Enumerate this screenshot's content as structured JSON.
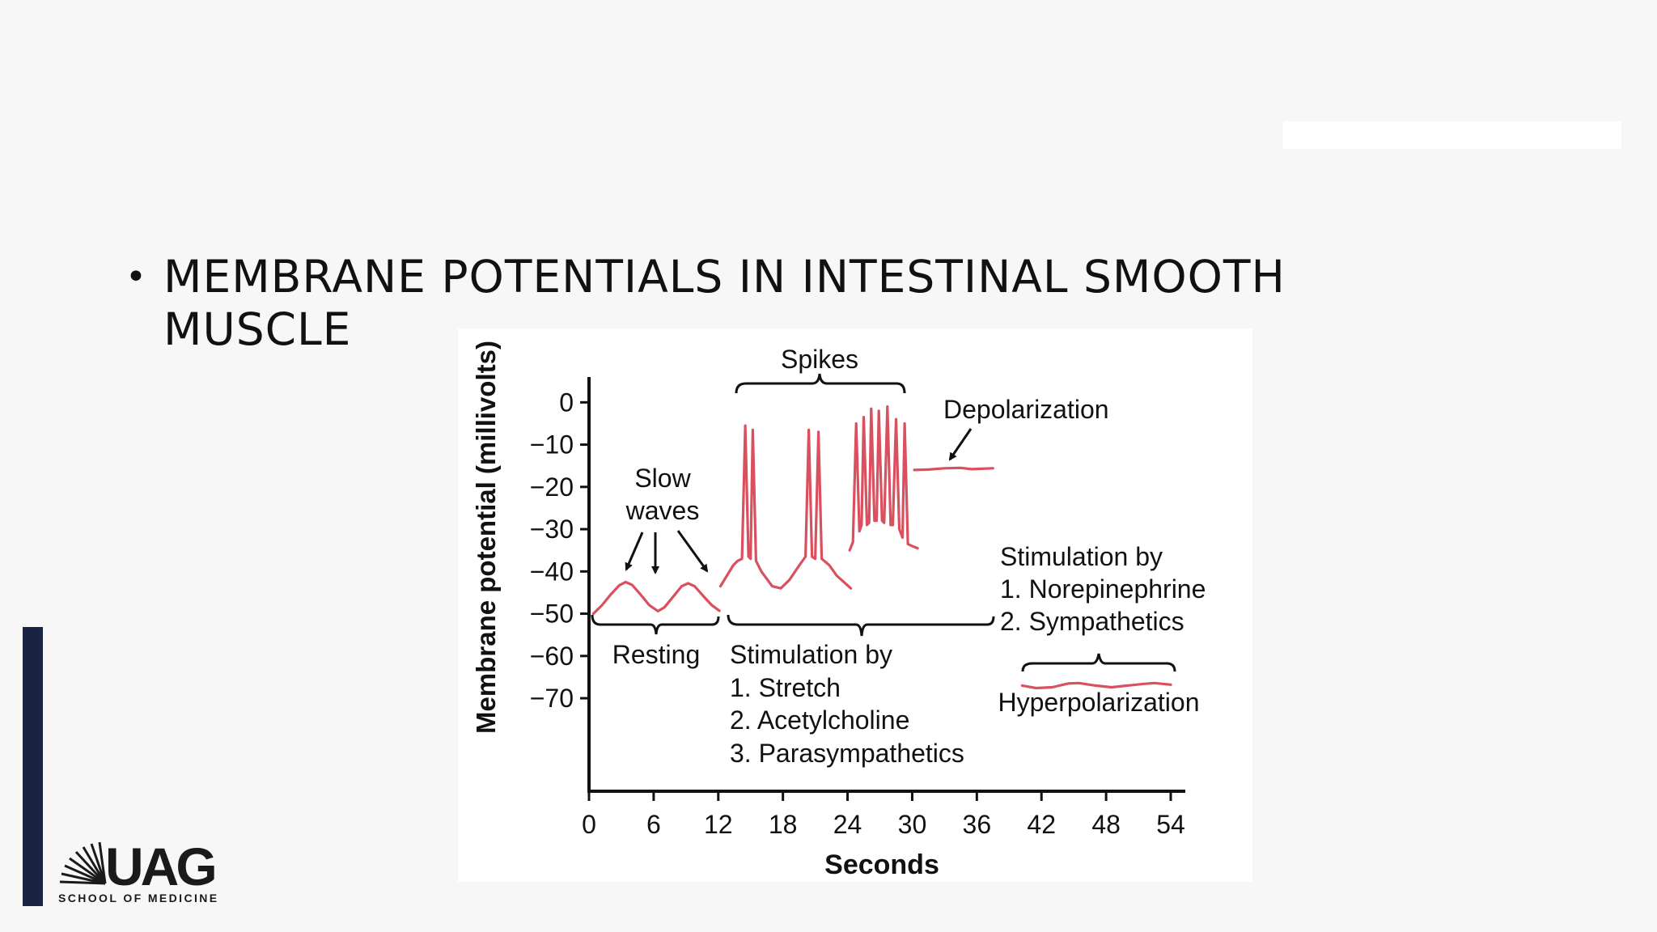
{
  "slide": {
    "bullet": "•",
    "title": "MEMBRANE POTENTIALS IN INTESTINAL SMOOTH MUSCLE"
  },
  "logo": {
    "name": "UAG",
    "subtitle": "SCHOOL OF MEDICINE"
  },
  "colors": {
    "trace": "#d9505e",
    "axis": "#111111",
    "sidebar": "#1b2342"
  },
  "chart_data": {
    "type": "line",
    "xlabel": "Seconds",
    "ylabel": "Membrane potential (millivolts)",
    "xlim": [
      0,
      54
    ],
    "ylim": [
      -92,
      6
    ],
    "x_ticks": [
      0,
      6,
      12,
      18,
      24,
      30,
      36,
      42,
      48,
      54
    ],
    "x_tick_labels": [
      "0",
      "6",
      "12",
      "18",
      "24",
      "30",
      "36",
      "42",
      "48",
      "54"
    ],
    "y_ticks": [
      0,
      -10,
      -20,
      -30,
      -40,
      -50,
      -60,
      -70
    ],
    "y_tick_labels": [
      "0",
      "−10",
      "−20",
      "−30",
      "−40",
      "−50",
      "−60",
      "−70"
    ],
    "series": [
      {
        "key": "resting",
        "points": [
          [
            0.4,
            -50
          ],
          [
            1.2,
            -48
          ],
          [
            2.0,
            -45.5
          ],
          [
            2.8,
            -43.3
          ],
          [
            3.4,
            -42.5
          ],
          [
            4.0,
            -43.2
          ],
          [
            4.8,
            -45.5
          ],
          [
            5.6,
            -48
          ],
          [
            6.4,
            -49.4
          ],
          [
            7.0,
            -48.5
          ],
          [
            7.8,
            -46
          ],
          [
            8.6,
            -43.5
          ],
          [
            9.2,
            -42.8
          ],
          [
            9.8,
            -43.5
          ],
          [
            10.6,
            -45.8
          ],
          [
            11.4,
            -48
          ],
          [
            12.1,
            -49.3
          ]
        ]
      },
      {
        "key": "spikes-1",
        "points": [
          [
            12.2,
            -43.5
          ],
          [
            12.8,
            -41
          ],
          [
            13.4,
            -38.5
          ],
          [
            13.8,
            -37.5
          ],
          [
            14.2,
            -37
          ],
          [
            14.5,
            -5.5
          ],
          [
            14.8,
            -36.5
          ],
          [
            15.0,
            -37
          ],
          [
            15.2,
            -6.5
          ],
          [
            15.5,
            -37.5
          ],
          [
            16.0,
            -40
          ],
          [
            17.0,
            -43.5
          ],
          [
            17.8,
            -44
          ],
          [
            18.6,
            -42
          ],
          [
            19.4,
            -39
          ],
          [
            20.1,
            -36.5
          ],
          [
            20.4,
            -6.5
          ],
          [
            20.7,
            -36.5
          ],
          [
            21.0,
            -37
          ],
          [
            21.3,
            -7
          ],
          [
            21.6,
            -37
          ],
          [
            22.3,
            -38.5
          ],
          [
            23.0,
            -41
          ],
          [
            24.3,
            -44
          ]
        ]
      },
      {
        "key": "spikes-2",
        "points": [
          [
            24.2,
            -35
          ],
          [
            24.5,
            -33
          ],
          [
            24.8,
            -5
          ],
          [
            25.1,
            -30.5
          ],
          [
            25.3,
            -29
          ],
          [
            25.5,
            -3.5
          ],
          [
            25.8,
            -29
          ],
          [
            26.0,
            -28.5
          ],
          [
            26.2,
            -1.5
          ],
          [
            26.5,
            -28
          ],
          [
            26.7,
            -28
          ],
          [
            26.9,
            -2
          ],
          [
            27.2,
            -28
          ],
          [
            27.4,
            -28.5
          ],
          [
            27.7,
            -1
          ],
          [
            28.0,
            -29
          ],
          [
            28.2,
            -29
          ],
          [
            28.5,
            -4
          ],
          [
            28.8,
            -30
          ],
          [
            29.1,
            -32
          ],
          [
            29.3,
            -5
          ],
          [
            29.6,
            -33.5
          ],
          [
            30.0,
            -34
          ],
          [
            30.5,
            -34.5
          ]
        ]
      },
      {
        "key": "depolarization",
        "points": [
          [
            30.2,
            -16
          ],
          [
            31.5,
            -15.9
          ],
          [
            33.0,
            -15.6
          ],
          [
            34.5,
            -15.5
          ],
          [
            35.5,
            -15.8
          ],
          [
            37.5,
            -15.6
          ]
        ]
      },
      {
        "key": "hyperpolarization",
        "points": [
          [
            40.2,
            -67
          ],
          [
            41.5,
            -67.6
          ],
          [
            43.0,
            -67.4
          ],
          [
            44.5,
            -66.5
          ],
          [
            45.5,
            -66.4
          ],
          [
            47.0,
            -67
          ],
          [
            48.5,
            -67.4
          ],
          [
            50.0,
            -67
          ],
          [
            51.5,
            -66.6
          ],
          [
            52.5,
            -66.4
          ],
          [
            54.0,
            -66.8
          ]
        ]
      }
    ],
    "annotations": {
      "spikes": "Spikes",
      "depolarization": "Depolarization",
      "slow_waves_1": "Slow",
      "slow_waves_2": "waves",
      "resting": "Resting",
      "stim_title": "Stimulation by",
      "stim_1": "1. Stretch",
      "stim_2": "2. Acetylcholine",
      "stim_3": "3. Parasympathetics",
      "stim2_title": "Stimulation by",
      "stim2_1": "1. Norepinephrine",
      "stim2_2": "2. Sympathetics",
      "hyperpolarization": "Hyperpolarization"
    }
  }
}
